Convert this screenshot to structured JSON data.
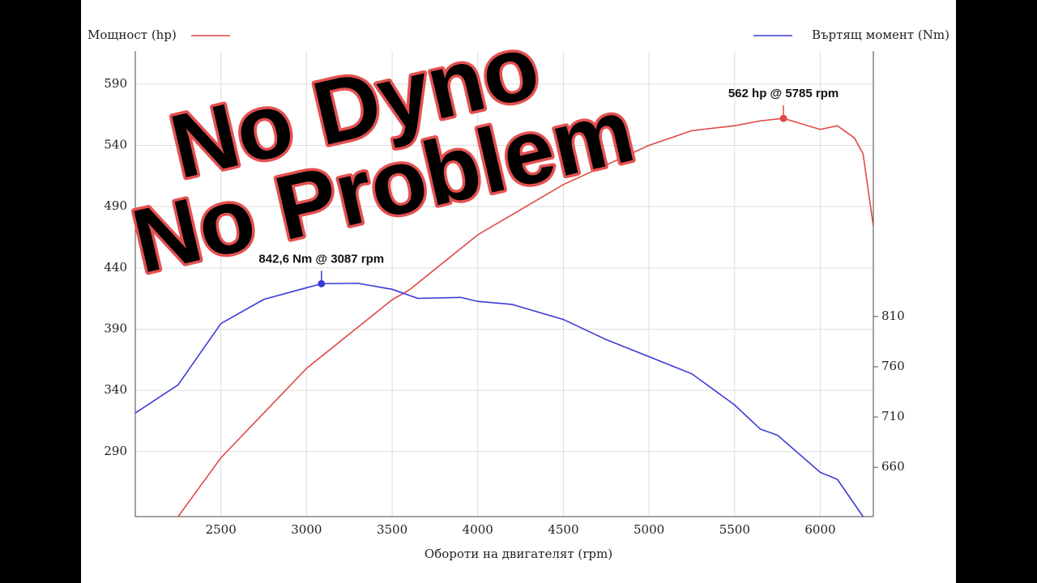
{
  "chart_data": {
    "type": "line",
    "x_label": "Обороти на двигателят (rpm)",
    "xlim": [
      2000,
      6310
    ],
    "xticks": [
      2500,
      3000,
      3500,
      4000,
      4500,
      5000,
      5500,
      6000
    ],
    "ylim": [
      237,
      617
    ],
    "yticks": [
      290,
      340,
      390,
      440,
      490,
      540,
      590
    ],
    "y2lim": [
      611,
      1074
    ],
    "y2ticks": [
      660,
      710,
      760,
      810
    ],
    "grid": true,
    "series": [
      {
        "name": "Мощност (hp)",
        "color": "#e04848",
        "axis": "y",
        "x": [
          2250,
          2500,
          3000,
          3500,
          3600,
          4000,
          4500,
          5000,
          5250,
          5500,
          5650,
          5785,
          6000,
          6100,
          6200,
          6250,
          6310
        ],
        "values": [
          237,
          285,
          358,
          414,
          422,
          467,
          508,
          540,
          552,
          556,
          560,
          562,
          553,
          556,
          546,
          533,
          474
        ]
      },
      {
        "name": "Въртящ момент (Nm)",
        "color": "#3a3ad6",
        "axis": "y2",
        "x": [
          2000,
          2250,
          2500,
          2750,
          3087,
          3300,
          3500,
          3650,
          3900,
          4000,
          4200,
          4500,
          4750,
          5000,
          5250,
          5500,
          5650,
          5750,
          6000,
          6100,
          6250
        ],
        "values": [
          714,
          742,
          803,
          827,
          842.6,
          843,
          837,
          828,
          829,
          825,
          822,
          807,
          787,
          770,
          753,
          722,
          698,
          692,
          655,
          648,
          611
        ]
      }
    ],
    "peaks": [
      {
        "series": 0,
        "x": 5785,
        "value": 562,
        "label": "562 hp @ 5785 rpm"
      },
      {
        "series": 1,
        "x": 3087,
        "value": 842.6,
        "label": "842,6 Nm @ 3087 rpm"
      }
    ]
  },
  "overlay_text": [
    "No Dyno",
    "No Problem"
  ]
}
